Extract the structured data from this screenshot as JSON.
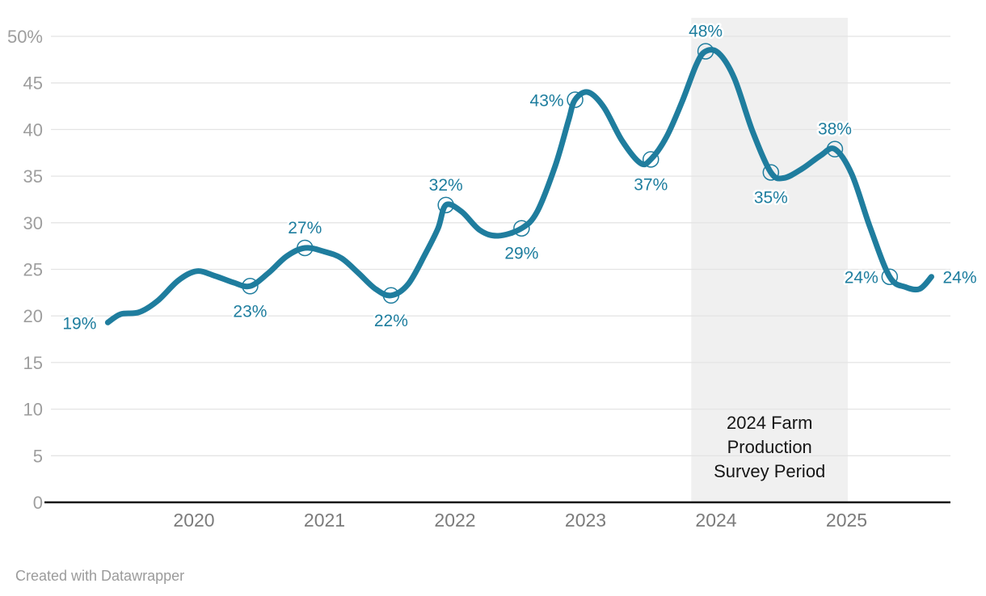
{
  "credit": "Created with Datawrapper",
  "colors": {
    "background": "#ffffff",
    "line": "#1f7d9e",
    "data_label": "#1d7d9e",
    "grid": "#e4e4e4",
    "axis": "#161616",
    "y_tick_label": "#9e9e9e",
    "x_tick_label": "#7b7b7b",
    "band_fill": "#f0f0f0",
    "band_label": "#161616",
    "credit": "#9b9b9b"
  },
  "chart_data": {
    "type": "line",
    "title": "",
    "xlabel": "",
    "ylabel": "",
    "unit": "%",
    "ylim": [
      0,
      50
    ],
    "grid": true,
    "legend": "none",
    "y_ticks": [
      {
        "v": 50,
        "label": "50%"
      },
      {
        "v": 45,
        "label": "45"
      },
      {
        "v": 40,
        "label": "40"
      },
      {
        "v": 35,
        "label": "35"
      },
      {
        "v": 30,
        "label": "30"
      },
      {
        "v": 25,
        "label": "25"
      },
      {
        "v": 20,
        "label": "20"
      },
      {
        "v": 15,
        "label": "15"
      },
      {
        "v": 10,
        "label": "10"
      },
      {
        "v": 5,
        "label": "5"
      },
      {
        "v": 0,
        "label": "0"
      }
    ],
    "x_ticks": [
      {
        "year": 2020,
        "label": "2020"
      },
      {
        "year": 2021,
        "label": "2021"
      },
      {
        "year": 2022,
        "label": "2022"
      },
      {
        "year": 2023,
        "label": "2023"
      },
      {
        "year": 2024,
        "label": "2024"
      },
      {
        "year": 2025,
        "label": "2025"
      }
    ],
    "annotation_band": {
      "from_year": 2023.81,
      "to_year": 2025.01,
      "label_lines": [
        "2024 Farm",
        "Production",
        "Survey Period"
      ]
    },
    "labeled_values": [
      19,
      23,
      27,
      22,
      32,
      29,
      43,
      37,
      48,
      35,
      38,
      24,
      24
    ],
    "points": [
      {
        "x": 2019.34,
        "v": 19.3,
        "label": "19%",
        "label_pos": "left"
      },
      {
        "x": 2019.44,
        "v": 20.2
      },
      {
        "x": 2019.58,
        "v": 20.4
      },
      {
        "x": 2019.72,
        "v": 21.6
      },
      {
        "x": 2019.88,
        "v": 23.8
      },
      {
        "x": 2020.02,
        "v": 24.8
      },
      {
        "x": 2020.16,
        "v": 24.3
      },
      {
        "x": 2020.3,
        "v": 23.6
      },
      {
        "x": 2020.43,
        "v": 23.2,
        "label": "23%",
        "label_pos": "below",
        "marker": true
      },
      {
        "x": 2020.57,
        "v": 24.6
      },
      {
        "x": 2020.71,
        "v": 26.4
      },
      {
        "x": 2020.85,
        "v": 27.3,
        "label": "27%",
        "label_pos": "above",
        "marker": true
      },
      {
        "x": 2021.0,
        "v": 26.9
      },
      {
        "x": 2021.13,
        "v": 26.2
      },
      {
        "x": 2021.26,
        "v": 24.6
      },
      {
        "x": 2021.39,
        "v": 22.9
      },
      {
        "x": 2021.51,
        "v": 22.2,
        "label": "22%",
        "label_pos": "below",
        "marker": true
      },
      {
        "x": 2021.64,
        "v": 23.4
      },
      {
        "x": 2021.77,
        "v": 26.6
      },
      {
        "x": 2021.87,
        "v": 29.4
      },
      {
        "x": 2021.93,
        "v": 31.9,
        "label": "32%",
        "label_pos": "above",
        "marker": true
      },
      {
        "x": 2022.05,
        "v": 31.2
      },
      {
        "x": 2022.19,
        "v": 29.2
      },
      {
        "x": 2022.33,
        "v": 28.6
      },
      {
        "x": 2022.51,
        "v": 29.4,
        "label": "29%",
        "label_pos": "below",
        "marker": true
      },
      {
        "x": 2022.63,
        "v": 31.2
      },
      {
        "x": 2022.77,
        "v": 36.2
      },
      {
        "x": 2022.87,
        "v": 41.0
      },
      {
        "x": 2022.92,
        "v": 43.2,
        "label": "43%",
        "label_pos": "left",
        "marker": true
      },
      {
        "x": 2023.02,
        "v": 44.0
      },
      {
        "x": 2023.14,
        "v": 42.4
      },
      {
        "x": 2023.28,
        "v": 38.8
      },
      {
        "x": 2023.42,
        "v": 36.4
      },
      {
        "x": 2023.5,
        "v": 36.8,
        "label": "37%",
        "label_pos": "below",
        "marker": true
      },
      {
        "x": 2023.62,
        "v": 39.2
      },
      {
        "x": 2023.74,
        "v": 43.0
      },
      {
        "x": 2023.85,
        "v": 47.0
      },
      {
        "x": 2023.92,
        "v": 48.4,
        "label": "48%",
        "label_pos": "above",
        "marker": true
      },
      {
        "x": 2024.02,
        "v": 48.2
      },
      {
        "x": 2024.14,
        "v": 45.5
      },
      {
        "x": 2024.28,
        "v": 39.8
      },
      {
        "x": 2024.42,
        "v": 35.4,
        "label": "35%",
        "label_pos": "below",
        "marker": true
      },
      {
        "x": 2024.52,
        "v": 34.8
      },
      {
        "x": 2024.66,
        "v": 35.8
      },
      {
        "x": 2024.8,
        "v": 37.2
      },
      {
        "x": 2024.91,
        "v": 37.9,
        "label": "38%",
        "label_pos": "above",
        "marker": true
      },
      {
        "x": 2025.04,
        "v": 35.2
      },
      {
        "x": 2025.18,
        "v": 29.5
      },
      {
        "x": 2025.33,
        "v": 24.2,
        "label": "24%",
        "label_pos": "left",
        "marker": true
      },
      {
        "x": 2025.45,
        "v": 23.1
      },
      {
        "x": 2025.56,
        "v": 22.9
      },
      {
        "x": 2025.65,
        "v": 24.2,
        "label": "24%",
        "label_pos": "right"
      }
    ]
  }
}
